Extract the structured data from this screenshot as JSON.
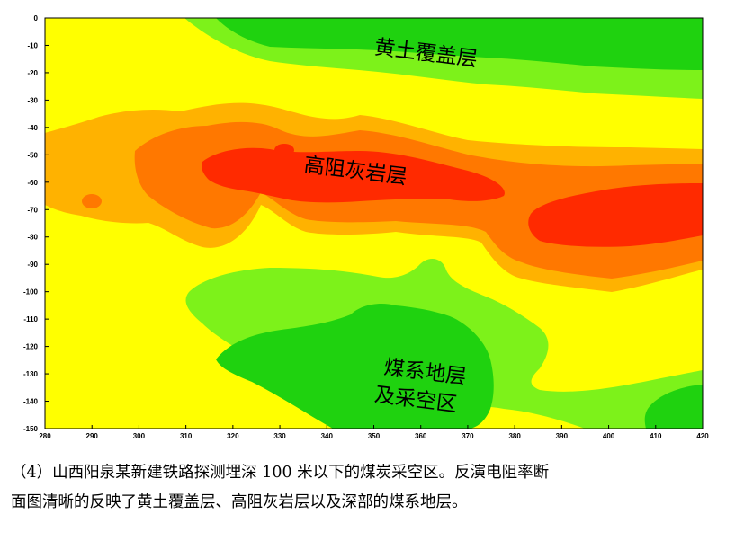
{
  "chart_data": {
    "type": "heatmap",
    "title": "",
    "xlabel": "",
    "ylabel": "",
    "x_ticks": [
      280,
      290,
      300,
      310,
      320,
      330,
      340,
      350,
      360,
      370,
      380,
      390,
      400,
      410,
      420
    ],
    "y_ticks": [
      0,
      -10,
      -20,
      -30,
      -40,
      -50,
      -60,
      -70,
      -80,
      -90,
      -100,
      -110,
      -120,
      -130,
      -140,
      -150
    ],
    "xlim": [
      280,
      420
    ],
    "ylim": [
      -150,
      0
    ],
    "color_levels": [
      "#1fd20f",
      "#7df21a",
      "#ffff00",
      "#ffb200",
      "#ff7800",
      "#ff2a00"
    ],
    "annotations": [
      {
        "text": "黄土覆盖层",
        "x": 350,
        "y": -13
      },
      {
        "text": "高阻灰岩层",
        "x": 335,
        "y": -56
      },
      {
        "text": "煤系地层",
        "x": 352,
        "y": -130
      },
      {
        "text": "及采空区",
        "x": 350,
        "y": -140
      }
    ]
  },
  "caption": {
    "line1": "（4）山西阳泉某新建铁路探测埋深 100 米以下的煤炭采空区。反演电阻率断",
    "line2": "面图清晰的反映了黄土覆盖层、高阻灰岩层以及深部的煤系地层。"
  }
}
